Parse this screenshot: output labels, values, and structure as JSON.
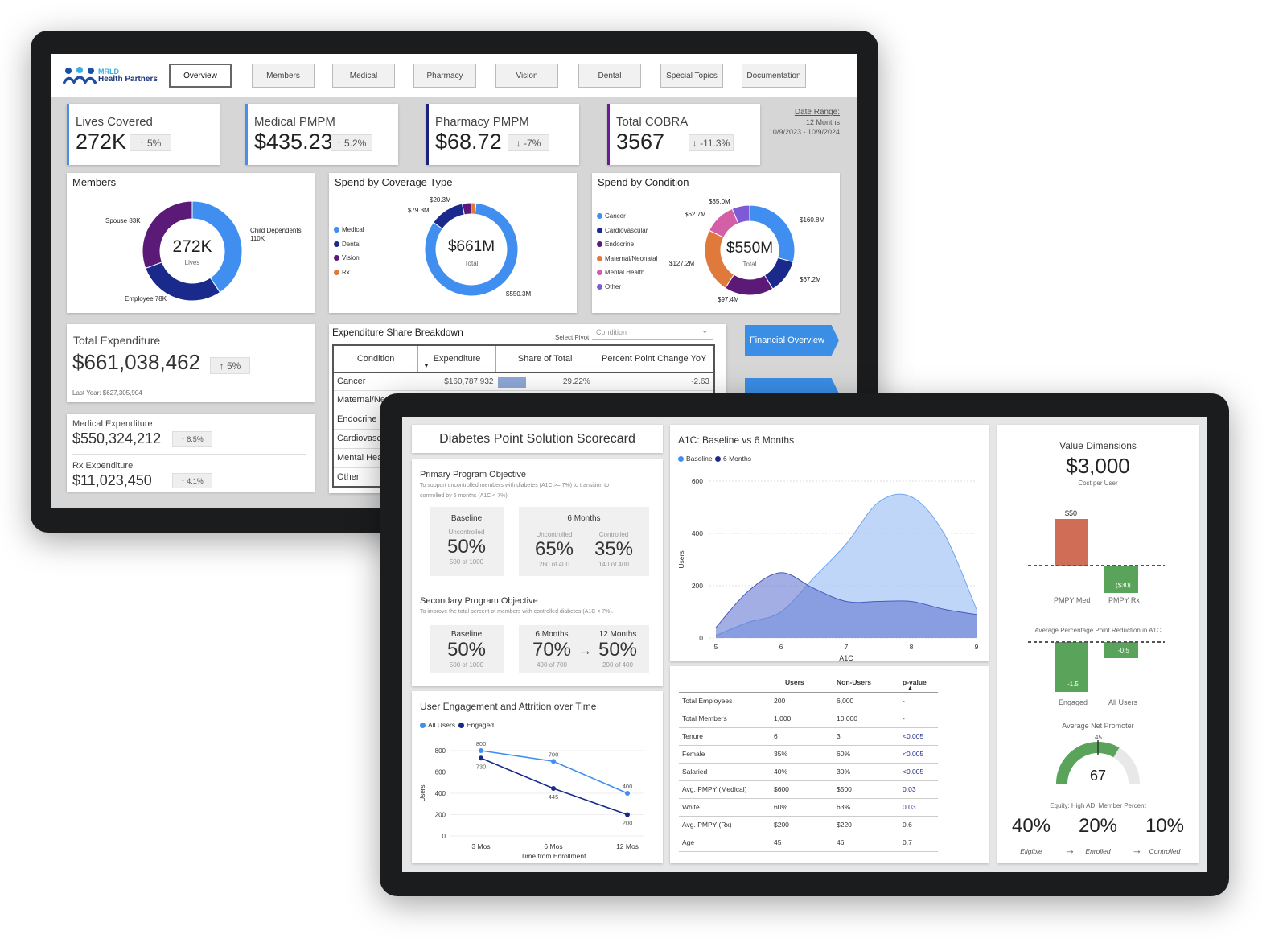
{
  "brand": {
    "line1": "MRLD",
    "line2": "Health Partners"
  },
  "nav": [
    "Overview",
    "Members",
    "Medical",
    "Pharmacy",
    "Vision",
    "Dental",
    "Special Topics",
    "Documentation"
  ],
  "date_range": {
    "label": "Date Range:",
    "months": "12 Months",
    "dates": "10/9/2023 - 10/9/2024"
  },
  "kpis": [
    {
      "title": "Lives Covered",
      "value": "272K",
      "delta": "↑ 5%",
      "color": "#4a90e2"
    },
    {
      "title": "Medical PMPM",
      "value": "$435.23",
      "delta": "↑ 5.2%",
      "color": "#4a90e2"
    },
    {
      "title": "Pharmacy PMPM",
      "value": "$68.72",
      "delta": "↓ -7%",
      "color": "#1a237e"
    },
    {
      "title": "Total COBRA",
      "value": "3567",
      "delta": "↓ -11.3%",
      "color": "#6a1b9a"
    }
  ],
  "members": {
    "title": "Members",
    "center": "272K",
    "center_sub": "Lives",
    "spouse": "Spouse 83K",
    "child1": "Child Dependents",
    "child2": "110K",
    "employee": "Employee 78K"
  },
  "coverage": {
    "title": "Spend by Coverage Type",
    "center": "$661M",
    "center_sub": "Total",
    "legend": [
      "Medical",
      "Dental",
      "Vision",
      "Rx"
    ],
    "l1": "$20.3M",
    "l2": "$79.3M",
    "l3": "$550.3M"
  },
  "condition": {
    "title": "Spend by Condition",
    "center": "$550M",
    "center_sub": "Total",
    "legend": [
      "Cancer",
      "Cardiovascular",
      "Endocrine",
      "Maternal/Neonatal",
      "Mental Health",
      "Other"
    ],
    "l_a": "$35.0M",
    "l_b": "$62.7M",
    "l_c": "$160.8M",
    "l_d": "$127.2M",
    "l_e": "$67.2M",
    "l_f": "$97.4M"
  },
  "total_exp": {
    "title": "Total Expenditure",
    "value": "$661,038,462",
    "delta": "↑ 5%",
    "last": "Last Year: $627,305,904"
  },
  "med_exp": {
    "title": "Medical Expenditure",
    "value": "$550,324,212",
    "delta": "↑ 8.5%"
  },
  "rx_exp": {
    "title": "Rx Expenditure",
    "value": "$11,023,450",
    "delta": "↑ 4.1%"
  },
  "breakdown": {
    "title": "Expenditure Share Breakdown",
    "pivot_label": "Select Pivot:",
    "pivot_value": "Condition",
    "headers": [
      "Condition",
      "Expenditure",
      "Share of Total",
      "Percent Point Change YoY"
    ],
    "first": {
      "c": "Cancer",
      "e": "$160,787,932",
      "s": "29.22%",
      "p": "-2.63"
    },
    "rows": [
      "Maternal/Ne",
      "Endocrine",
      "Cardiovascu",
      "Mental Hea",
      "Other"
    ]
  },
  "fin_button": "Financial Overview",
  "scorecard": {
    "title": "Diabetes Point Solution Scorecard"
  },
  "primary": {
    "title": "Primary Program Objective",
    "desc1": "To support uncontrolled members with diabetes (A1C >= 7%) to transition to",
    "desc2": "controlled by 6 months (A1C < 7%).",
    "base_title": "Baseline",
    "base_sub": "Uncontrolled",
    "base_val": "50%",
    "base_n": "500 of 1000",
    "six_title": "6 Months",
    "un_sub": "Uncontrolled",
    "un_val": "65%",
    "un_n": "260 of 400",
    "co_sub": "Controlled",
    "co_val": "35%",
    "co_n": "140 of 400"
  },
  "secondary": {
    "title": "Secondary Program Objective",
    "desc": "To improve the total percent of members with controlled diabetes (A1C < 7%).",
    "b_title": "Baseline",
    "b_val": "50%",
    "b_n": "500 of 1000",
    "s_title": "6 Months",
    "s_val": "70%",
    "s_n": "490 of 700",
    "arrow": "→",
    "t_title": "12 Months",
    "t_val": "50%",
    "t_n": "200 of 400"
  },
  "engagement": {
    "title": "User Engagement and Attrition over Time",
    "legend": [
      "All Users",
      "Engaged"
    ],
    "ylabel": "Users",
    "xlabel": "Time from Enrollment"
  },
  "a1c": {
    "title": "A1C: Baseline vs 6 Months",
    "legend": [
      "Baseline",
      "6 Months"
    ],
    "ylabel": "Users",
    "xlabel": "A1C"
  },
  "stats": {
    "headers": [
      "",
      "Users",
      "Non-Users",
      "p-value"
    ],
    "rows": [
      [
        "Total Employees",
        "200",
        "6,000",
        "-"
      ],
      [
        "Total Members",
        "1,000",
        "10,000",
        "-"
      ],
      [
        "Tenure",
        "6",
        "3",
        "<0.005"
      ],
      [
        "Female",
        "35%",
        "60%",
        "<0.005"
      ],
      [
        "Salaried",
        "40%",
        "30%",
        "<0.005"
      ],
      [
        "Avg. PMPY (Medical)",
        "$600",
        "$500",
        "0.03"
      ],
      [
        "White",
        "60%",
        "63%",
        "0.03"
      ],
      [
        "Avg. PMPY (Rx)",
        "$200",
        "$220",
        "0.6"
      ],
      [
        "Age",
        "45",
        "46",
        "0.7"
      ]
    ]
  },
  "value": {
    "title": "Value Dimensions",
    "cost": "$3,000",
    "cost_sub": "Cost per User",
    "med_val": "$50",
    "rx_val": "($30)",
    "med_lbl": "PMPY Med",
    "rx_lbl": "PMPY Rx",
    "a1c_title": "Average Percentage Point Reduction in A1C",
    "eng_val": "-1.5",
    "all_val": "-0.5",
    "eng_lbl": "Engaged",
    "all_lbl": "All Users",
    "nps_title": "Average Net Promoter",
    "nps_max": "45",
    "nps_val": "67",
    "equity_title": "Equity: High ADI Member Percent",
    "eq": [
      {
        "v": "40%",
        "l": "Eligible"
      },
      {
        "v": "20%",
        "l": "Enrolled"
      },
      {
        "v": "10%",
        "l": "Controlled"
      }
    ],
    "arrow": "→"
  },
  "chart_data": [
    {
      "type": "pie",
      "title": "Members",
      "categories": [
        "Child Dependents",
        "Employee",
        "Spouse"
      ],
      "values": [
        110,
        78,
        83
      ]
    },
    {
      "type": "pie",
      "title": "Spend by Coverage Type",
      "categories": [
        "Medical",
        "Dental",
        "Vision",
        "Rx"
      ],
      "values": [
        550.3,
        79.3,
        20.3,
        11.1
      ]
    },
    {
      "type": "pie",
      "title": "Spend by Condition",
      "categories": [
        "Cancer",
        "Cardiovascular",
        "Endocrine",
        "Maternal/Neonatal",
        "Mental Health",
        "Other"
      ],
      "values": [
        160.8,
        67.2,
        97.4,
        127.2,
        62.7,
        35.0
      ]
    },
    {
      "type": "line",
      "title": "User Engagement and Attrition over Time",
      "categories": [
        "3 Mos",
        "6 Mos",
        "12 Mos"
      ],
      "series": [
        {
          "name": "All Users",
          "values": [
            800,
            700,
            400
          ]
        },
        {
          "name": "Engaged",
          "values": [
            730,
            445,
            200
          ]
        }
      ],
      "xlabel": "Time from Enrollment",
      "ylabel": "Users",
      "ylim": [
        0,
        800
      ],
      "yticks": [
        0,
        200,
        400,
        600,
        800
      ]
    },
    {
      "type": "area",
      "title": "A1C: Baseline vs 6 Months",
      "x": [
        5,
        5.5,
        6,
        6.5,
        7,
        7.5,
        8,
        8.5,
        9
      ],
      "series": [
        {
          "name": "Baseline",
          "values": [
            40,
            180,
            250,
            190,
            140,
            140,
            140,
            110,
            90
          ]
        },
        {
          "name": "6 Months",
          "values": [
            10,
            60,
            100,
            230,
            360,
            520,
            540,
            400,
            110
          ]
        }
      ],
      "xlabel": "A1C",
      "ylabel": "Users",
      "xlim": [
        5,
        9
      ],
      "ylim": [
        0,
        600
      ],
      "xticks": [
        5,
        6,
        7,
        8,
        9
      ],
      "yticks": [
        0,
        200,
        400,
        600
      ]
    }
  ]
}
